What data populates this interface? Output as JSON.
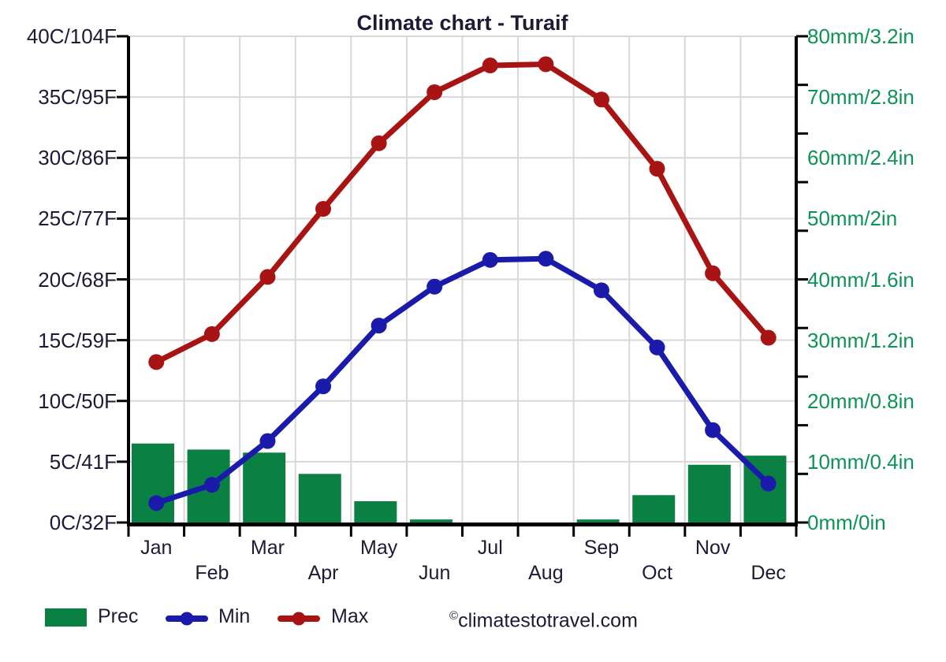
{
  "chart_data": {
    "type": "bar+line climate combo",
    "title": "Climate chart - Turaif",
    "months": [
      "Jan",
      "Feb",
      "Mar",
      "Apr",
      "May",
      "Jun",
      "Jul",
      "Aug",
      "Sep",
      "Oct",
      "Nov",
      "Dec"
    ],
    "series": [
      {
        "name": "Prec",
        "type": "bar",
        "axis": "right",
        "unit": "mm",
        "color": "#0b8043",
        "values": [
          13,
          12,
          11.5,
          8,
          3.5,
          0.5,
          0,
          0,
          0.5,
          4.5,
          9.5,
          11
        ]
      },
      {
        "name": "Min",
        "type": "line",
        "axis": "left",
        "unit": "C",
        "color": "#1b1bab",
        "values": [
          1.6,
          3.1,
          6.7,
          11.2,
          16.2,
          19.4,
          21.6,
          21.7,
          19.1,
          14.4,
          7.6,
          3.2
        ]
      },
      {
        "name": "Max",
        "type": "line",
        "axis": "left",
        "unit": "C",
        "color": "#a81414",
        "values": [
          13.2,
          15.5,
          20.2,
          25.8,
          31.2,
          35.4,
          37.6,
          37.7,
          34.8,
          29.1,
          20.5,
          15.2
        ]
      }
    ],
    "left_axis": {
      "min": 0,
      "max": 40,
      "step": 5,
      "text_color": "#1b1b38",
      "labels": [
        "40C/104F",
        "35C/95F",
        "30C/86F",
        "25C/77F",
        "20C/68F",
        "15C/59F",
        "10C/50F",
        "5C/41F",
        "0C/32F"
      ]
    },
    "right_axis": {
      "min": 0,
      "max": 80,
      "label_step": 10,
      "tick_count": 11,
      "text_color": "#0d9355",
      "labels": [
        "80mm/3.2in",
        "70mm/2.8in",
        "60mm/2.4in",
        "50mm/2in",
        "40mm/1.6in",
        "30mm/1.2in",
        "20mm/0.8in",
        "10mm/0.4in",
        "0mm/0in"
      ]
    },
    "grid": {
      "show": true,
      "color": "#d8d8d8"
    },
    "axis_color": "#000000",
    "legend_position": "bottom"
  },
  "legend": {
    "items": [
      {
        "label": "Prec",
        "series": "Prec"
      },
      {
        "label": "Min",
        "series": "Min"
      },
      {
        "label": "Max",
        "series": "Max"
      }
    ],
    "watermark_symbol": "©",
    "watermark_text": "climatestotravel.com"
  }
}
